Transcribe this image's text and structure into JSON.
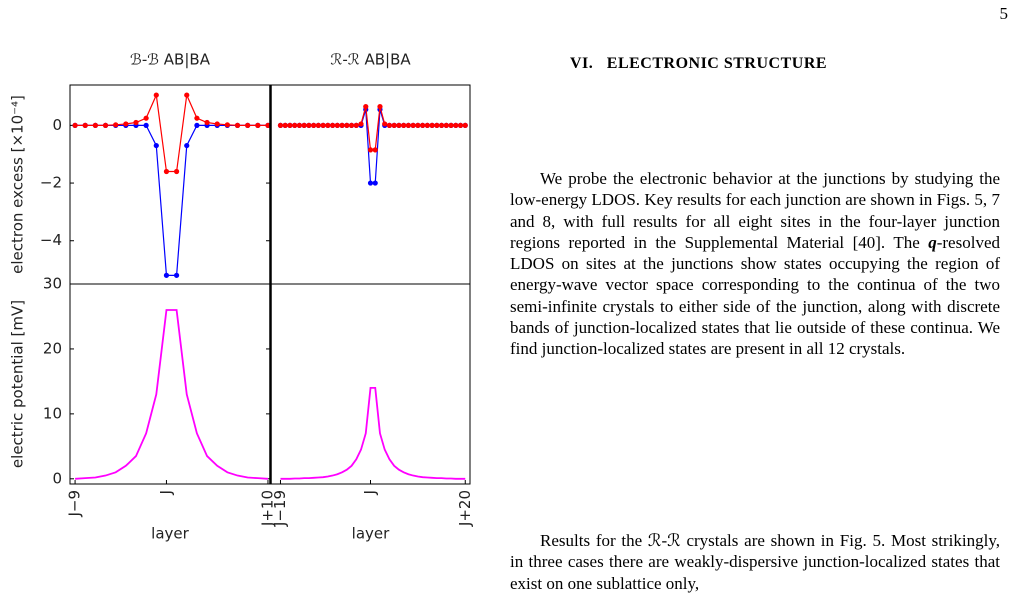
{
  "page_number": "5",
  "heading": "VI.   ELECTRONIC STRUCTURE",
  "paragraphs": [
    [
      "We probe the electronic behavior at the junctions by studying the low-energy LDOS. Key results for each junction are shown in Figs. 5, 7 and 8, with full results for all eight sites in the four-layer junction regions reported in the Supplemental Material [40]. The ",
      "q",
      "-resolved LDOS on sites at the junctions show states occupying the region of energy-wave vector space corresponding to the continua of the two semi-infinite crystals to either side of the junction, along with discrete bands of junction-localized states that lie outside of these continua. We find junction-localized states are present in all 12 crystals."
    ],
    [
      "Results for the ℛ-ℛ crystals are shown in Fig. 5. Most strikingly, in three cases there are weakly-dispersive junction-localized states that exist on one sublattice only,"
    ]
  ],
  "chart_data": [
    {
      "type": "line",
      "title": "ℬ-ℬ  AB|BA",
      "ylabel": "electron excess [×10⁻⁴]",
      "marker": true,
      "x": [
        -9,
        -8,
        -7,
        -6,
        -5,
        -4,
        -3,
        -2,
        -1,
        0,
        1,
        2,
        3,
        4,
        5,
        6,
        7,
        8,
        9,
        10
      ],
      "series": [
        {
          "color": "#0000ff",
          "values": [
            0,
            0,
            0,
            0,
            0,
            0,
            0,
            0,
            -0.7,
            -5.2,
            -5.2,
            -0.7,
            0,
            0,
            0,
            0,
            0,
            0,
            0,
            0
          ]
        },
        {
          "color": "#ff0000",
          "values": [
            0,
            0,
            0,
            0,
            0.02,
            0.05,
            0.1,
            0.25,
            1.05,
            -1.6,
            -1.6,
            1.05,
            0.25,
            0.1,
            0.05,
            0.02,
            0,
            0,
            0,
            0
          ]
        }
      ],
      "xlim": [
        -9.5,
        10.2
      ],
      "ylim": [
        -5.5,
        1.4
      ],
      "yticks": [
        {
          "value": -4,
          "label": "−4"
        },
        {
          "value": -2,
          "label": "−2"
        },
        0
      ]
    },
    {
      "type": "line",
      "title": "ℛ-ℛ  AB|BA",
      "marker": true,
      "x": [
        -19,
        -18,
        -17,
        -16,
        -15,
        -14,
        -13,
        -12,
        -11,
        -10,
        -9,
        -8,
        -7,
        -6,
        -5,
        -4,
        -3,
        -2,
        -1,
        0,
        1,
        2,
        3,
        4,
        5,
        6,
        7,
        8,
        9,
        10,
        11,
        12,
        13,
        14,
        15,
        16,
        17,
        18,
        19,
        20
      ],
      "series": [
        {
          "color": "#0000ff",
          "values": [
            0,
            0,
            0,
            0,
            0,
            0,
            0,
            0,
            0,
            0,
            0,
            0,
            0,
            0,
            0,
            0,
            0,
            0,
            0.55,
            -2,
            -2,
            0.55,
            0,
            0,
            0,
            0,
            0,
            0,
            0,
            0,
            0,
            0,
            0,
            0,
            0,
            0,
            0,
            0,
            0,
            0
          ]
        },
        {
          "color": "#ff0000",
          "values": [
            0,
            0,
            0,
            0,
            0,
            0,
            0,
            0,
            0,
            0,
            0,
            0,
            0,
            0,
            0,
            0,
            0,
            0.05,
            0.65,
            -0.85,
            -0.85,
            0.65,
            0.05,
            0,
            0,
            0,
            0,
            0,
            0,
            0,
            0,
            0,
            0,
            0,
            0,
            0,
            0,
            0,
            0,
            0
          ]
        }
      ],
      "xlim": [
        -21,
        21
      ],
      "ylim": [
        -5.5,
        1.4
      ]
    },
    {
      "type": "line",
      "ylabel": "electric potential [mV]",
      "xlabel": "layer",
      "x": [
        -9,
        -8,
        -7,
        -6,
        -5,
        -4,
        -3,
        -2,
        -1,
        0,
        1,
        2,
        3,
        4,
        5,
        6,
        7,
        8,
        9,
        10
      ],
      "series": [
        {
          "color": "#ff00ff",
          "values": [
            0,
            0.1,
            0.2,
            0.5,
            1,
            2,
            3.5,
            7,
            13,
            26,
            26,
            13,
            7,
            3.5,
            2,
            1,
            0.5,
            0.2,
            0.1,
            0
          ]
        }
      ],
      "xlim": [
        -9.5,
        10.2
      ],
      "ylim": [
        -0.8,
        30
      ],
      "xticks": [
        {
          "value": -9,
          "label": "J−9"
        },
        {
          "value": 0,
          "label": "J"
        },
        {
          "value": 10,
          "label": "J+10"
        }
      ],
      "yticks": [
        0,
        10,
        20,
        30
      ]
    },
    {
      "type": "line",
      "xlabel": "layer",
      "x": [
        -19,
        -18,
        -17,
        -16,
        -15,
        -14,
        -13,
        -12,
        -11,
        -10,
        -9,
        -8,
        -7,
        -6,
        -5,
        -4,
        -3,
        -2,
        -1,
        0,
        1,
        2,
        3,
        4,
        5,
        6,
        7,
        8,
        9,
        10,
        11,
        12,
        13,
        14,
        15,
        16,
        17,
        18,
        19,
        20
      ],
      "series": [
        {
          "color": "#ff00ff",
          "values": [
            0,
            0,
            0,
            0.05,
            0.05,
            0.1,
            0.1,
            0.15,
            0.2,
            0.25,
            0.35,
            0.5,
            0.7,
            1,
            1.4,
            2,
            3,
            4.5,
            7,
            14,
            14,
            7,
            4.5,
            3,
            2,
            1.4,
            1,
            0.7,
            0.5,
            0.35,
            0.25,
            0.2,
            0.15,
            0.1,
            0.1,
            0.05,
            0.05,
            0,
            0,
            0
          ]
        }
      ],
      "xlim": [
        -21,
        21
      ],
      "ylim": [
        -0.8,
        30
      ],
      "xticks": [
        {
          "value": -19,
          "label": "J−19"
        },
        {
          "value": 0,
          "label": "J"
        },
        {
          "value": 20,
          "label": "J+20"
        }
      ]
    }
  ]
}
